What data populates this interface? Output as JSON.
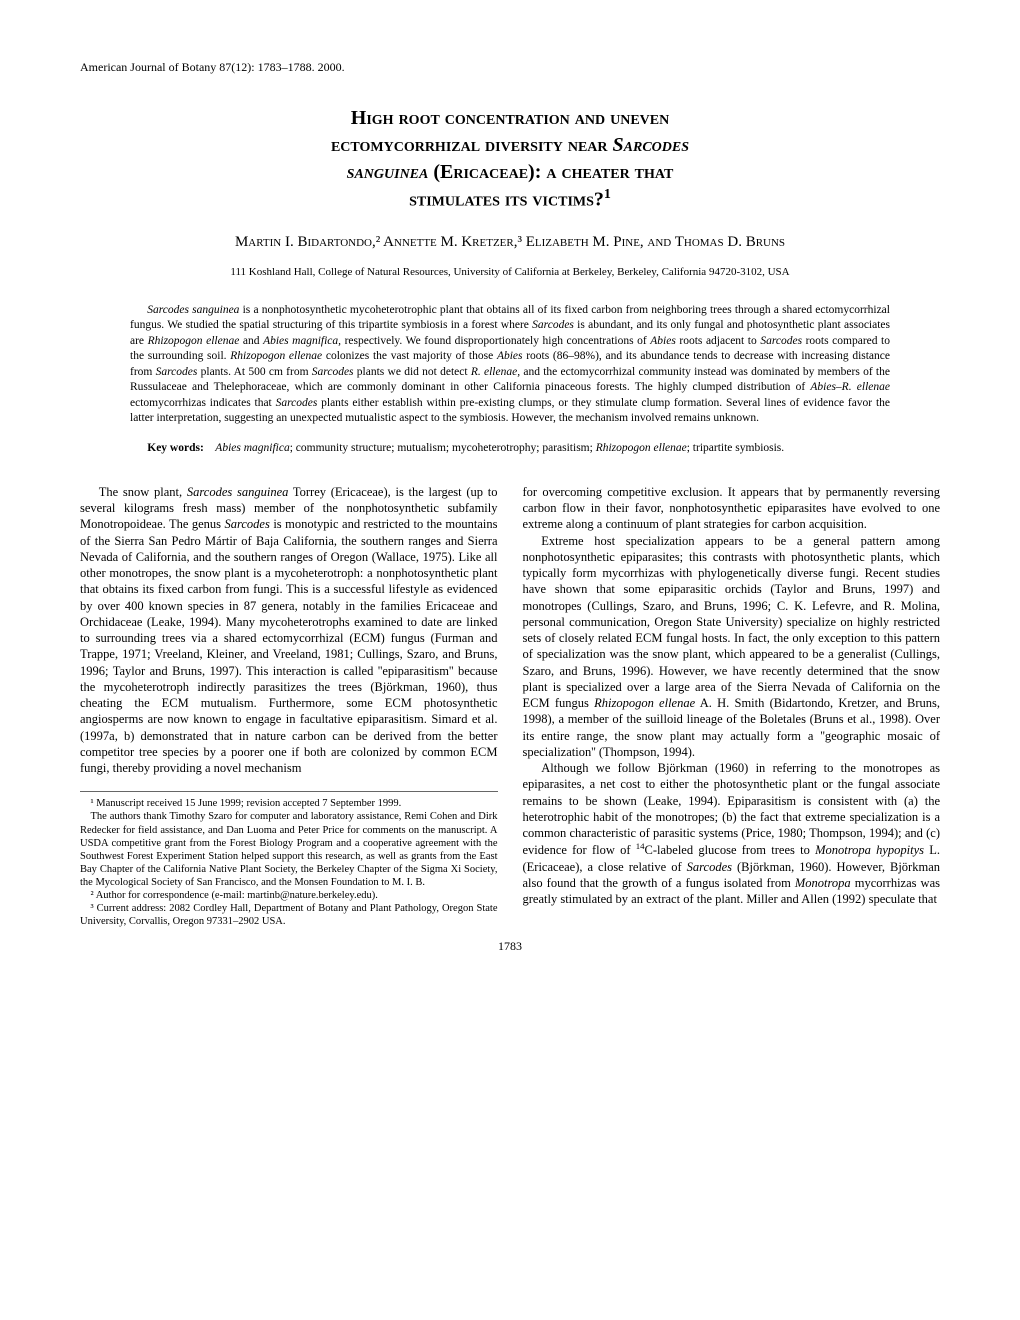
{
  "journal": {
    "name": "American Journal of Botany",
    "volume": "87(12)",
    "pages": "1783–1788",
    "year": "2000"
  },
  "title": {
    "line1": "High root concentration and uneven",
    "line2": "ectomycorrhizal diversity near",
    "line2_italic": "Sarcodes",
    "line3_italic": "sanguinea",
    "line3": "(Ericaceae): a cheater that",
    "line4": "stimulates its victims?",
    "footnote_marker": "1"
  },
  "authors": {
    "list": "Martin I. Bidartondo,² Annette M. Kretzer,³ Elizabeth M. Pine, and Thomas D. Bruns"
  },
  "affiliation": "111 Koshland Hall, College of Natural Resources, University of California at Berkeley, Berkeley, California 94720-3102, USA",
  "abstract_html": "<span class='italic'>Sarcodes sanguinea</span> is a nonphotosynthetic mycoheterotrophic plant that obtains all of its fixed carbon from neighboring trees through a shared ectomycorrhizal fungus. We studied the spatial structuring of this tripartite symbiosis in a forest where <span class='italic'>Sarcodes</span> is abundant, and its only fungal and photosynthetic plant associates are <span class='italic'>Rhizopogon ellenae</span> and <span class='italic'>Abies magnifica,</span> respectively. We found disproportionately high concentrations of <span class='italic'>Abies</span> roots adjacent to <span class='italic'>Sarcodes</span> roots compared to the surrounding soil. <span class='italic'>Rhizopogon ellenae</span> colonizes the vast majority of those <span class='italic'>Abies</span> roots (86–98%), and its abundance tends to decrease with increasing distance from <span class='italic'>Sarcodes</span> plants. At 500 cm from <span class='italic'>Sarcodes</span> plants we did not detect <span class='italic'>R. ellenae,</span> and the ectomycorrhizal community instead was dominated by members of the Russulaceae and Thelephoraceae, which are commonly dominant in other California pinaceous forests. The highly clumped distribution of <span class='italic'>Abies–R. ellenae</span> ectomycorrhizas indicates that <span class='italic'>Sarcodes</span> plants either establish within pre-existing clumps, or they stimulate clump formation. Several lines of evidence favor the latter interpretation, suggesting an unexpected mutualistic aspect to the symbiosis. However, the mechanism involved remains unknown.",
  "keywords": {
    "label": "Key words:",
    "text_html": "<span class='italic'>Abies magnifica</span>; community structure; mutualism; mycoheterotrophy; parasitism; <span class='italic'>Rhizopogon ellenae</span>; tripartite symbiosis."
  },
  "body": {
    "left_col_html": "The snow plant, <span class='italic'>Sarcodes sanguinea</span> Torrey (Ericaceae), is the largest (up to several kilograms fresh mass) member of the nonphotosynthetic subfamily Monotropoideae. The genus <span class='italic'>Sarcodes</span> is monotypic and restricted to the mountains of the Sierra San Pedro Mártir of Baja California, the southern ranges and Sierra Nevada of California, and the southern ranges of Oregon (Wallace, 1975). Like all other monotropes, the snow plant is a mycoheterotroph: a nonphotosynthetic plant that obtains its fixed carbon from fungi. This is a successful lifestyle as evidenced by over 400 known species in 87 genera, notably in the families Ericaceae and Orchidaceae (Leake, 1994). Many mycoheterotrophs examined to date are linked to surrounding trees via a shared ectomycorrhizal (ECM) fungus (Furman and Trappe, 1971; Vreeland, Kleiner, and Vreeland, 1981; Cullings, Szaro, and Bruns, 1996; Taylor and Bruns, 1997). This interaction is called ''epiparasitism'' because the mycoheterotroph indirectly parasitizes the trees (Björkman, 1960), thus cheating the ECM mutualism. Furthermore, some ECM photosynthetic angiosperms are now known to engage in facultative epiparasitism. Simard et al. (1997a, b) demonstrated that in nature carbon can be derived from the better competitor tree species by a poorer one if both are colonized by common ECM fungi, thereby providing a novel mechanism",
    "right_col_p1_html": "for overcoming competitive exclusion. It appears that by permanently reversing carbon flow in their favor, nonphotosynthetic epiparasites have evolved to one extreme along a continuum of plant strategies for carbon acquisition.",
    "right_col_p2_html": "Extreme host specialization appears to be a general pattern among nonphotosynthetic epiparasites; this contrasts with photosynthetic plants, which typically form mycorrhizas with phylogenetically diverse fungi. Recent studies have shown that some epiparasitic orchids (Taylor and Bruns, 1997) and monotropes (Cullings, Szaro, and Bruns, 1996; C. K. Lefevre, and R. Molina, personal communication, Oregon State University) specialize on highly restricted sets of closely related ECM fungal hosts. In fact, the only exception to this pattern of specialization was the snow plant, which appeared to be a generalist (Cullings, Szaro, and Bruns, 1996). However, we have recently determined that the snow plant is specialized over a large area of the Sierra Nevada of California on the ECM fungus <span class='italic'>Rhizopogon ellenae</span> A. H. Smith (Bidartondo, Kretzer, and Bruns, 1998), a member of the suilloid lineage of the Boletales (Bruns et al., 1998). Over its entire range, the snow plant may actually form a ''geographic mosaic of specialization'' (Thompson, 1994).",
    "right_col_p3_html": "Although we follow Björkman (1960) in referring to the monotropes as epiparasites, a net cost to either the photosynthetic plant or the fungal associate remains to be shown (Leake, 1994). Epiparasitism is consistent with (a) the heterotrophic habit of the monotropes; (b) the fact that extreme specialization is a common characteristic of parasitic systems (Price, 1980; Thompson, 1994); and (c) evidence for flow of <sup>14</sup>C-labeled glucose from trees to <span class='italic'>Monotropa hypopitys</span> L. (Ericaceae), a close relative of <span class='italic'>Sarcodes</span> (Björkman, 1960). However, Björkman also found that the growth of a fungus isolated from <span class='italic'>Monotropa</span> mycorrhizas was greatly stimulated by an extract of the plant. Miller and Allen (1992) speculate that"
  },
  "footnotes": {
    "f1": "¹ Manuscript received 15 June 1999; revision accepted 7 September 1999.",
    "ack": "The authors thank Timothy Szaro for computer and laboratory assistance, Remi Cohen and Dirk Redecker for field assistance, and Dan Luoma and Peter Price for comments on the manuscript. A USDA competitive grant from the Forest Biology Program and a cooperative agreement with the Southwest Forest Experiment Station helped support this research, as well as grants from the East Bay Chapter of the California Native Plant Society, the Berkeley Chapter of the Sigma Xi Society, the Mycological Society of San Francisco, and the Monsen Foundation to M. I. B.",
    "f2": "² Author for correspondence (e-mail: martinb@nature.berkeley.edu).",
    "f3": "³ Current address: 2082 Cordley Hall, Department of Botany and Plant Pathology, Oregon State University, Corvallis, Oregon 97331–2902 USA."
  },
  "page_number": "1783"
}
